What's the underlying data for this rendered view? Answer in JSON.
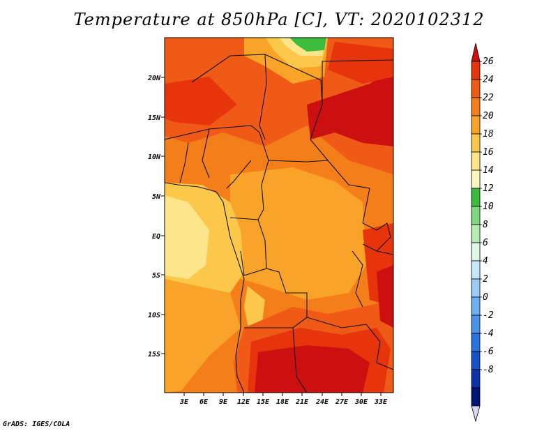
{
  "title": "Temperature at 850hPa [C], VT: 2020102312",
  "credit": "GrADS: IGES/COLA",
  "lat_labels": [
    "20N",
    "15N",
    "10N",
    "5N",
    "EQ",
    "5S",
    "10S",
    "15S"
  ],
  "lon_labels": [
    "3E",
    "6E",
    "9E",
    "12E",
    "15E",
    "18E",
    "21E",
    "24E",
    "27E",
    "30E",
    "33E"
  ],
  "colorbar": {
    "labels": [
      "26",
      "24",
      "22",
      "20",
      "18",
      "16",
      "14",
      "12",
      "10",
      "8",
      "6",
      "4",
      "2",
      "0",
      "-2",
      "-4",
      "-6",
      "-8"
    ],
    "colors": [
      "#cc1010",
      "#e6340c",
      "#ef5a16",
      "#f47f1a",
      "#f9a428",
      "#fbc84c",
      "#fde58c",
      "#fdf8c0",
      "#3cbc3c",
      "#7ed87e",
      "#b4ecb4",
      "#e1f8e9",
      "#c6e6fb",
      "#9ccbf5",
      "#6eaff2",
      "#4a93eb",
      "#2a72e0",
      "#1552cc",
      "#0b34a8",
      "#04157a",
      "#d8d8f6"
    ]
  }
}
